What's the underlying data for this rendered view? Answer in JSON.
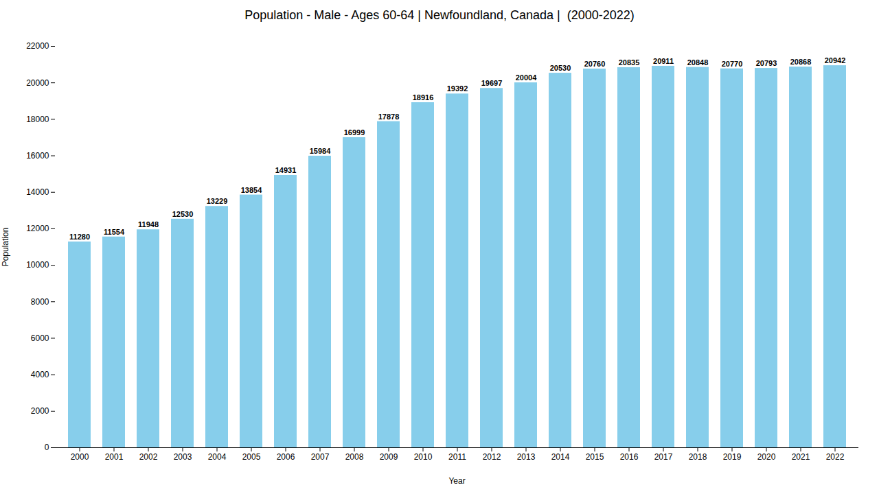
{
  "chart_data": {
    "type": "bar",
    "title": "Population - Male - Ages 60-64 | Newfoundland, Canada |  (2000-2022)",
    "xlabel": "Year",
    "ylabel": "Population",
    "categories": [
      "2000",
      "2001",
      "2002",
      "2003",
      "2004",
      "2005",
      "2006",
      "2007",
      "2008",
      "2009",
      "2010",
      "2011",
      "2012",
      "2013",
      "2014",
      "2015",
      "2016",
      "2017",
      "2018",
      "2019",
      "2020",
      "2021",
      "2022"
    ],
    "values": [
      11280,
      11554,
      11948,
      12530,
      13229,
      13854,
      14931,
      15984,
      16999,
      17878,
      18916,
      19392,
      19697,
      20004,
      20530,
      20760,
      20835,
      20911,
      20848,
      20770,
      20793,
      20868,
      20942
    ],
    "color": "#87CEEB",
    "ylim": [
      0,
      22000
    ],
    "yticks": [
      0,
      2000,
      4000,
      6000,
      8000,
      10000,
      12000,
      14000,
      16000,
      18000,
      20000,
      22000
    ],
    "grid": false,
    "data_labels": true
  }
}
